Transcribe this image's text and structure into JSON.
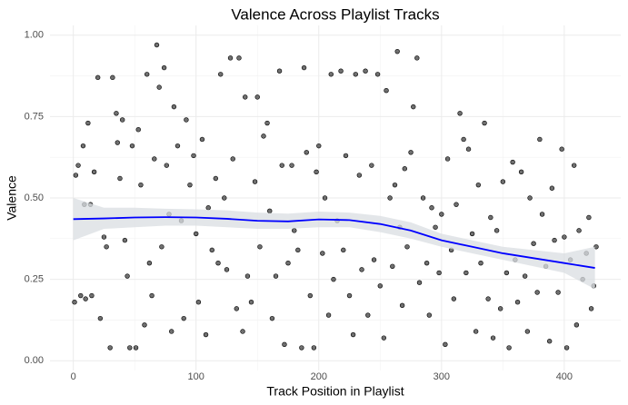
{
  "chart_data": {
    "type": "scatter",
    "title": "Valence Across Playlist Tracks",
    "x_label": "Track Position in Playlist",
    "y_label": "Valence",
    "xlim": [
      -19,
      446
    ],
    "ylim": [
      -0.03,
      1.03
    ],
    "xticks": [
      0,
      100,
      200,
      300,
      400
    ],
    "yticks": [
      {
        "value": 0,
        "label": "0.00"
      },
      {
        "value": 0.25,
        "label": "0.25"
      },
      {
        "value": 0.5,
        "label": "0.50"
      },
      {
        "value": 0.75,
        "label": "0.75"
      },
      {
        "value": 1,
        "label": "1.00"
      }
    ],
    "grid": true,
    "points": {
      "color": "#333333",
      "x": [
        1,
        2,
        4,
        6,
        8,
        9,
        10,
        12,
        14,
        15,
        17,
        20,
        22,
        25,
        27,
        30,
        32,
        35,
        36,
        38,
        40,
        42,
        44,
        46,
        48,
        51,
        53,
        55,
        58,
        60,
        62,
        64,
        66,
        68,
        70,
        72,
        74,
        76,
        78,
        80,
        82,
        85,
        88,
        90,
        92,
        95,
        98,
        100,
        102,
        105,
        108,
        110,
        113,
        116,
        118,
        120,
        123,
        125,
        128,
        130,
        133,
        135,
        138,
        140,
        142,
        145,
        148,
        150,
        152,
        155,
        158,
        160,
        162,
        165,
        168,
        170,
        172,
        175,
        178,
        180,
        183,
        186,
        188,
        190,
        193,
        196,
        198,
        200,
        203,
        205,
        208,
        210,
        212,
        215,
        218,
        220,
        222,
        225,
        228,
        230,
        233,
        235,
        238,
        240,
        243,
        245,
        248,
        250,
        253,
        255,
        258,
        260,
        262,
        264,
        266,
        268,
        270,
        272,
        275,
        277,
        280,
        282,
        285,
        288,
        290,
        292,
        295,
        298,
        300,
        303,
        305,
        308,
        310,
        312,
        315,
        318,
        320,
        322,
        325,
        328,
        330,
        332,
        335,
        338,
        340,
        342,
        345,
        348,
        350,
        353,
        355,
        358,
        360,
        362,
        365,
        368,
        370,
        372,
        375,
        378,
        380,
        382,
        385,
        388,
        390,
        392,
        395,
        398,
        400,
        402,
        405,
        408,
        410,
        412,
        415,
        418,
        420,
        422,
        424,
        426
      ],
      "y": [
        0.18,
        0.57,
        0.6,
        0.2,
        0.66,
        0.48,
        0.19,
        0.73,
        0.48,
        0.2,
        0.58,
        0.87,
        0.13,
        0.38,
        0.35,
        0.04,
        0.87,
        0.76,
        0.67,
        0.56,
        0.74,
        0.37,
        0.26,
        0.04,
        0.66,
        0.04,
        0.71,
        0.54,
        0.11,
        0.88,
        0.3,
        0.2,
        0.62,
        0.97,
        0.84,
        0.35,
        0.9,
        0.6,
        0.45,
        0.09,
        0.78,
        0.66,
        0.43,
        0.13,
        0.74,
        0.54,
        0.63,
        0.39,
        0.18,
        0.68,
        0.08,
        0.47,
        0.34,
        0.56,
        0.3,
        0.88,
        0.5,
        0.28,
        0.93,
        0.62,
        0.16,
        0.93,
        0.09,
        0.81,
        0.26,
        0.18,
        0.55,
        0.81,
        0.35,
        0.69,
        0.73,
        0.46,
        0.13,
        0.26,
        0.89,
        0.6,
        0.05,
        0.3,
        0.6,
        0.4,
        0.34,
        0.04,
        0.9,
        0.64,
        0.2,
        0.04,
        0.58,
        0.66,
        0.33,
        0.5,
        0.14,
        0.88,
        0.25,
        0.43,
        0.89,
        0.34,
        0.63,
        0.2,
        0.08,
        0.88,
        0.57,
        0.28,
        0.89,
        0.14,
        0.6,
        0.31,
        0.88,
        0.23,
        0.07,
        0.83,
        0.5,
        0.29,
        0.54,
        0.95,
        0.41,
        0.17,
        0.59,
        0.35,
        0.64,
        0.78,
        0.93,
        0.24,
        0.5,
        0.3,
        0.14,
        0.47,
        0.41,
        0.27,
        0.45,
        0.05,
        0.62,
        0.34,
        0.19,
        0.48,
        0.76,
        0.68,
        0.27,
        0.65,
        0.39,
        0.09,
        0.54,
        0.3,
        0.73,
        0.19,
        0.44,
        0.07,
        0.4,
        0.16,
        0.55,
        0.27,
        0.04,
        0.61,
        0.31,
        0.18,
        0.58,
        0.26,
        0.09,
        0.5,
        0.36,
        0.21,
        0.68,
        0.45,
        0.29,
        0.06,
        0.53,
        0.37,
        0.21,
        0.65,
        0.38,
        0.04,
        0.31,
        0.6,
        0.11,
        0.4,
        0.25,
        0.33,
        0.44,
        0.16,
        0.23,
        0.35
      ]
    },
    "smooth": {
      "color": "#0000ff",
      "band_color": "#d9dde2",
      "x": [
        0,
        25,
        50,
        75,
        100,
        125,
        150,
        175,
        200,
        225,
        250,
        275,
        300,
        325,
        350,
        375,
        400,
        425
      ],
      "y": [
        0.435,
        0.437,
        0.44,
        0.441,
        0.44,
        0.436,
        0.43,
        0.428,
        0.434,
        0.432,
        0.42,
        0.4,
        0.37,
        0.35,
        0.33,
        0.315,
        0.3,
        0.285
      ],
      "lower": [
        0.37,
        0.405,
        0.41,
        0.415,
        0.415,
        0.41,
        0.405,
        0.405,
        0.41,
        0.41,
        0.395,
        0.375,
        0.35,
        0.33,
        0.31,
        0.29,
        0.27,
        0.22
      ],
      "upper": [
        0.5,
        0.47,
        0.47,
        0.467,
        0.465,
        0.462,
        0.455,
        0.452,
        0.458,
        0.455,
        0.445,
        0.425,
        0.39,
        0.37,
        0.35,
        0.34,
        0.33,
        0.35
      ]
    }
  }
}
